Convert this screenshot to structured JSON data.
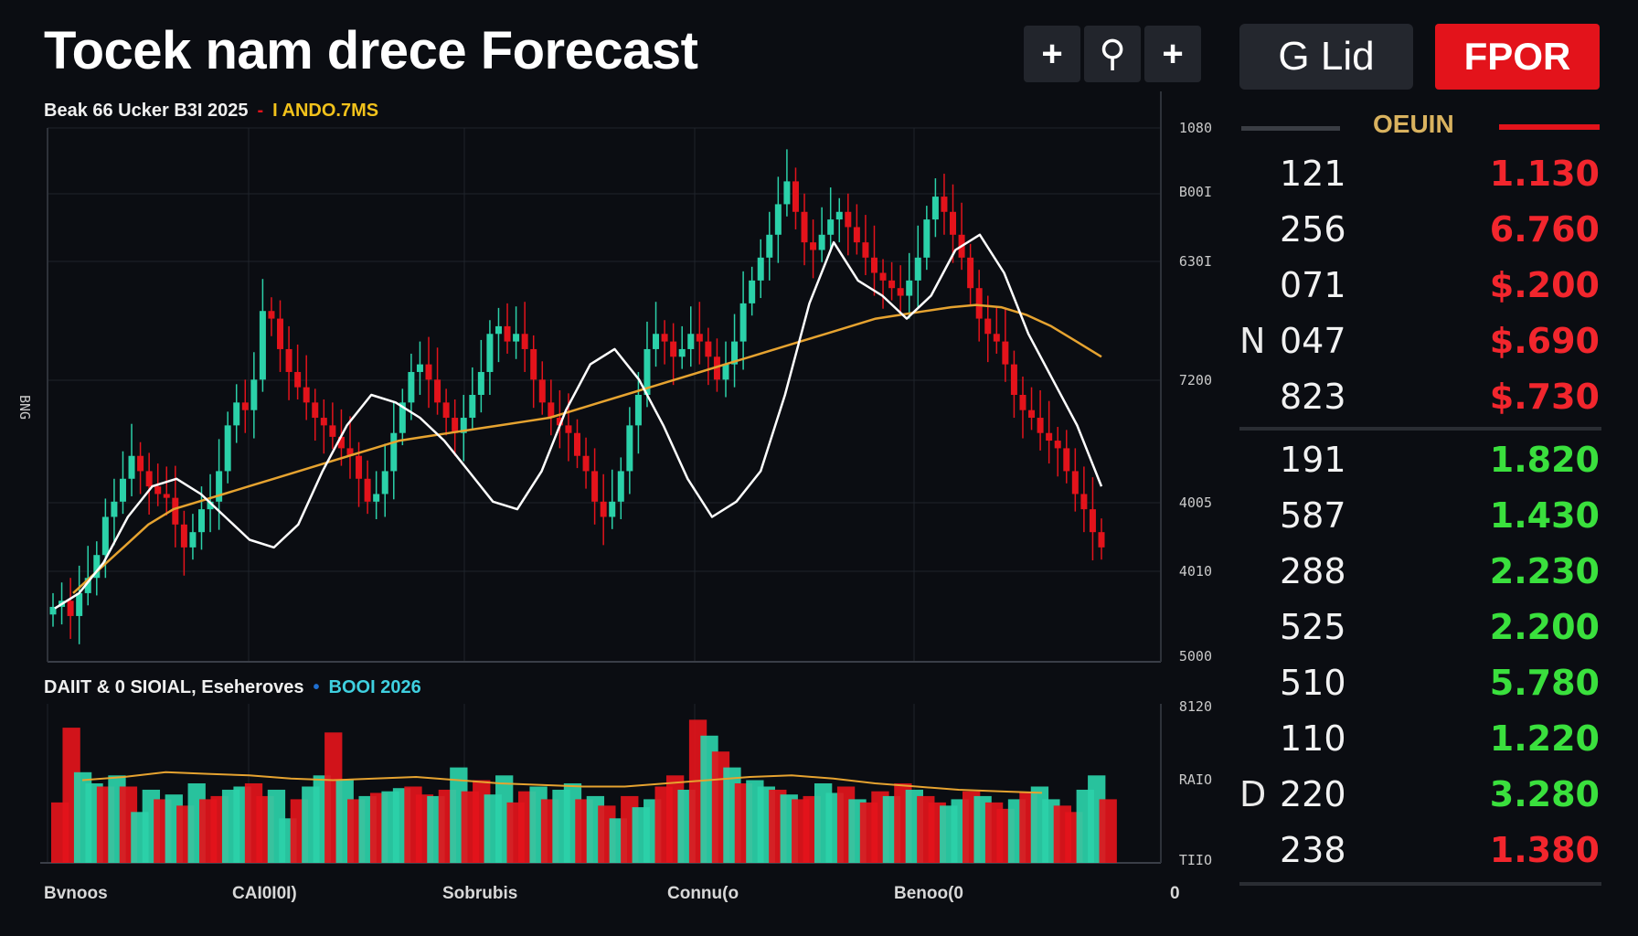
{
  "header": {
    "title": "Tocek nam drece Forecast",
    "icon_buttons": [
      {
        "glyph": "+",
        "name": "add-icon"
      },
      {
        "glyph": "⚲",
        "name": "pin-icon"
      },
      {
        "glyph": "+",
        "name": "add-icon"
      }
    ],
    "grid_button": "G Lid",
    "forecast_button": "FPOR"
  },
  "colors": {
    "background": "#0b0d12",
    "up": "#2bd1a9",
    "down": "#e3131b",
    "ma_fast": "#ffffff",
    "ma_slow": "#e6a330",
    "bid": "#3ae03d",
    "ask": "#f2262d"
  },
  "price_panel": {
    "caption": "Beak 66 Ucker B3I 2025",
    "caption_dot": "-",
    "caption_accent": "I ANDO.7MS",
    "left_label": "BNG"
  },
  "volume_panel": {
    "caption": "DAIIT & 0 SIOIAL, Eseheroves",
    "caption_dot": "•",
    "caption_accent": "BOOI 2026"
  },
  "chart_data": [
    {
      "type": "candlestick",
      "title": "Beak 66 Ucker B3I 2025",
      "y_ticks": [
        "1080",
        "B00I",
        "630I",
        "7200",
        "4005",
        "4010",
        "5000"
      ],
      "closes": [
        522,
        530,
        510,
        540,
        560,
        590,
        640,
        660,
        690,
        720,
        700,
        680,
        670,
        665,
        630,
        600,
        620,
        650,
        660,
        700,
        760,
        790,
        780,
        820,
        910,
        900,
        860,
        830,
        810,
        790,
        770,
        760,
        745,
        730,
        720,
        690,
        660,
        670,
        700,
        750,
        790,
        830,
        840,
        820,
        790,
        770,
        750,
        770,
        800,
        830,
        880,
        890,
        870,
        880,
        860,
        820,
        790,
        770,
        760,
        750,
        720,
        700,
        660,
        640,
        660,
        700,
        760,
        800,
        860,
        880,
        870,
        850,
        860,
        880,
        870,
        850,
        820,
        840,
        870,
        920,
        950,
        980,
        1010,
        1050,
        1080,
        1040,
        1000,
        990,
        1010,
        1030,
        1040,
        1020,
        1000,
        980,
        960,
        950,
        940,
        930,
        950,
        980,
        1030,
        1060,
        1040,
        1010,
        980,
        940,
        900,
        880,
        870,
        840,
        800,
        780,
        770,
        750,
        740,
        730,
        700,
        670,
        650,
        620,
        600
      ],
      "ma_fast": [
        520,
        540,
        580,
        640,
        680,
        690,
        670,
        640,
        610,
        600,
        630,
        700,
        760,
        800,
        790,
        770,
        740,
        700,
        660,
        650,
        700,
        780,
        840,
        860,
        820,
        760,
        690,
        640,
        660,
        700,
        800,
        920,
        1000,
        950,
        930,
        900,
        930,
        990,
        1010,
        960,
        880,
        820,
        760,
        680
      ],
      "ma_slow": [
        540,
        570,
        600,
        630,
        650,
        660,
        670,
        680,
        690,
        700,
        710,
        720,
        730,
        740,
        745,
        750,
        755,
        760,
        765,
        770,
        780,
        790,
        800,
        810,
        820,
        830,
        840,
        850,
        860,
        870,
        880,
        890,
        900,
        905,
        910,
        915,
        918,
        915,
        905,
        890,
        870,
        850
      ],
      "ylim": [
        450,
        1150
      ]
    },
    {
      "type": "bar",
      "title": "DAIIT & 0 SIOIAL, Eseheroves",
      "y_ticks": [
        "8120",
        "RAIO",
        "TIIO"
      ],
      "x_labels": [
        "Bvnoos",
        "CAI0I0I)",
        "Sobrubis",
        "Connu(o",
        "Benoo(0",
        "0"
      ],
      "values": [
        38,
        85,
        57,
        50,
        48,
        55,
        48,
        32,
        46,
        40,
        43,
        36,
        50,
        40,
        42,
        46,
        48,
        50,
        42,
        46,
        28,
        40,
        48,
        55,
        82,
        52,
        40,
        42,
        44,
        45,
        47,
        48,
        43,
        42,
        46,
        60,
        45,
        52,
        43,
        55,
        38,
        45,
        48,
        40,
        46,
        50,
        40,
        42,
        36,
        28,
        42,
        35,
        40,
        48,
        55,
        46,
        90,
        80,
        70,
        60,
        50,
        52,
        48,
        46,
        43,
        40,
        42,
        50,
        44,
        48,
        40,
        38,
        45,
        42,
        50,
        46,
        42,
        38,
        36,
        40,
        45,
        42,
        38,
        34,
        40,
        44,
        48,
        40,
        36,
        32,
        46,
        55,
        40
      ],
      "directions": [
        "d",
        "d",
        "u",
        "u",
        "d",
        "u",
        "d",
        "u",
        "u",
        "d",
        "u",
        "d",
        "u",
        "d",
        "d",
        "u",
        "u",
        "d",
        "d",
        "u",
        "u",
        "d",
        "u",
        "u",
        "d",
        "u",
        "d",
        "u",
        "d",
        "u",
        "u",
        "d",
        "d",
        "u",
        "d",
        "u",
        "d",
        "d",
        "u",
        "u",
        "d",
        "d",
        "u",
        "d",
        "u",
        "u",
        "d",
        "u",
        "d",
        "u",
        "d",
        "u",
        "u",
        "d",
        "d",
        "u",
        "d",
        "u",
        "d",
        "u",
        "d",
        "u",
        "u",
        "d",
        "u",
        "d",
        "d",
        "u",
        "u",
        "d",
        "u",
        "d",
        "d",
        "u",
        "d",
        "u",
        "d",
        "d",
        "u",
        "u",
        "d",
        "u",
        "d",
        "d",
        "u",
        "d",
        "u",
        "u",
        "d",
        "d",
        "u",
        "u",
        "d"
      ],
      "trend": [
        52,
        54,
        57,
        56,
        55,
        53,
        52,
        53,
        54,
        52,
        50,
        49,
        48,
        48,
        50,
        52,
        54,
        55,
        53,
        50,
        48,
        46,
        45,
        44
      ]
    }
  ],
  "order_book": {
    "header_label": "OEUIN",
    "asks": [
      {
        "qty": "121",
        "price": "1.130",
        "side": ""
      },
      {
        "qty": "256",
        "price": "6.760",
        "side": ""
      },
      {
        "qty": "071",
        "price": "$.200",
        "side": ""
      },
      {
        "qty": "047",
        "price": "$.690",
        "side": "N"
      },
      {
        "qty": "823",
        "price": "$.730",
        "side": ""
      }
    ],
    "bids": [
      {
        "qty": "191",
        "price": "1.820",
        "side": ""
      },
      {
        "qty": "587",
        "price": "1.430",
        "side": ""
      },
      {
        "qty": "288",
        "price": "2.230",
        "side": ""
      },
      {
        "qty": "525",
        "price": "2.200",
        "side": ""
      },
      {
        "qty": "510",
        "price": "5.780",
        "side": ""
      },
      {
        "qty": "110",
        "price": "1.220",
        "side": ""
      },
      {
        "qty": "220",
        "price": "3.280",
        "side": "D"
      }
    ],
    "last": {
      "qty": "238",
      "price": "1.380"
    }
  }
}
